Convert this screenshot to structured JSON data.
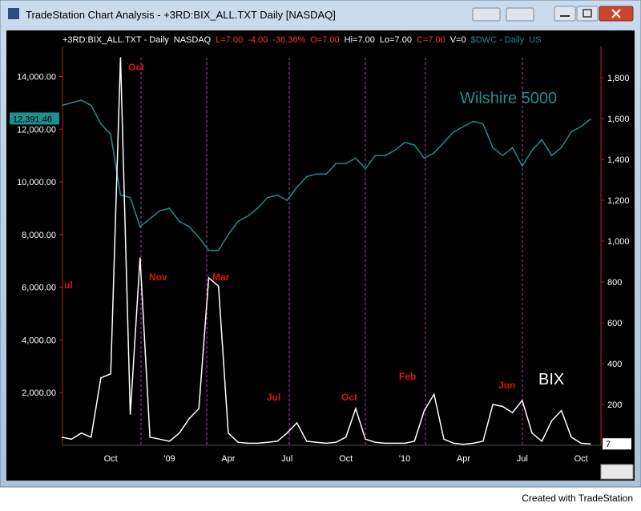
{
  "window_title": "TradeStation Chart Analysis - +3RD:BIX_ALL.TXT Daily [NASDAQ]",
  "info_bar": [
    {
      "text": "+3RD:BIX_ALL.TXT - Daily",
      "color": "#ffffff"
    },
    {
      "text": "NASDAQ",
      "color": "#ffffff"
    },
    {
      "text": "L=7.00",
      "color": "#ff3030"
    },
    {
      "text": "-4.00",
      "color": "#ff3030"
    },
    {
      "text": "-36.36%",
      "color": "#ff3030"
    },
    {
      "text": "O=7.00",
      "color": "#ff3030"
    },
    {
      "text": "Hi=7.00",
      "color": "#ffffff"
    },
    {
      "text": "Lo=7.00",
      "color": "#ffffff"
    },
    {
      "text": "C=7.00",
      "color": "#ff3030"
    },
    {
      "text": "V=0",
      "color": "#ffffff"
    },
    {
      "text": "$DWC - Daily",
      "color": "#1f8f8f"
    },
    {
      "text": "US",
      "color": "#1f8f8f"
    }
  ],
  "footer": "Created with TradeStation",
  "chart_data": {
    "type": "line",
    "categories": [
      null,
      null,
      null,
      null,
      null,
      "Oct",
      null,
      null,
      null,
      null,
      null,
      "'09",
      null,
      null,
      null,
      null,
      null,
      "Apr",
      null,
      null,
      null,
      null,
      null,
      "Jul",
      null,
      null,
      null,
      null,
      null,
      "Oct",
      null,
      null,
      null,
      null,
      null,
      "'10",
      null,
      null,
      null,
      null,
      null,
      "Apr",
      null,
      null,
      null,
      null,
      null,
      "Jul",
      null,
      null,
      null,
      null,
      null,
      "Oct",
      null
    ],
    "series": [
      {
        "name": "Wilshire 5000",
        "color": "#1f8f8f",
        "axis": "y",
        "values": [
          12900,
          13000,
          13100,
          12900,
          12200,
          11800,
          9500,
          9400,
          8300,
          8600,
          8900,
          9000,
          8500,
          8300,
          7900,
          7400,
          7400,
          8000,
          8500,
          8700,
          9000,
          9400,
          9500,
          9300,
          9800,
          10200,
          10300,
          10300,
          10700,
          10700,
          10900,
          10500,
          11000,
          11000,
          11200,
          11500,
          11400,
          10900,
          11100,
          11500,
          11900,
          12100,
          12300,
          12200,
          11300,
          11000,
          11300,
          10600,
          11200,
          11600,
          11000,
          11300,
          11900,
          12100,
          12391.46
        ],
        "last_label": "12,391.46"
      },
      {
        "name": "BIX",
        "color": "#ffffff",
        "axis": "y2",
        "values": [
          40,
          30,
          60,
          40,
          330,
          350,
          1900,
          150,
          920,
          40,
          30,
          20,
          60,
          130,
          180,
          820,
          780,
          60,
          15,
          10,
          10,
          15,
          20,
          60,
          110,
          20,
          15,
          10,
          15,
          40,
          180,
          30,
          15,
          10,
          10,
          10,
          20,
          170,
          250,
          30,
          10,
          5,
          10,
          20,
          200,
          190,
          160,
          220,
          60,
          20,
          120,
          170,
          40,
          10,
          7
        ],
        "last_label": "7"
      }
    ],
    "ylim": [
      0,
      15080
    ],
    "yticks": [
      {
        "value": 2000,
        "label": "2,000.00"
      },
      {
        "value": 4000,
        "label": "4,000.00"
      },
      {
        "value": 6000,
        "label": "6,000.00"
      },
      {
        "value": 8000,
        "label": "8,000.00"
      },
      {
        "value": 10000,
        "label": "10,000.00"
      },
      {
        "value": 12000,
        "label": "12,000.00"
      },
      {
        "value": 14000,
        "label": "14,000.00"
      }
    ],
    "y2lim": [
      0,
      1945
    ],
    "y2ticks": [
      200,
      400,
      600,
      800,
      {
        "value": 1000,
        "label": "1,000"
      },
      {
        "value": 1200,
        "label": "1,200"
      },
      {
        "value": 1400,
        "label": "1,400"
      },
      {
        "value": 1600,
        "label": "1,600"
      },
      {
        "value": 1800,
        "label": "1,800"
      }
    ],
    "annotations": [
      "ul",
      "Oct",
      "Nov",
      "Mar",
      "Jul",
      "Oct",
      "Feb",
      "Jun"
    ],
    "annotation_color": "#e01010",
    "marker_line_color": "#c040c0"
  }
}
